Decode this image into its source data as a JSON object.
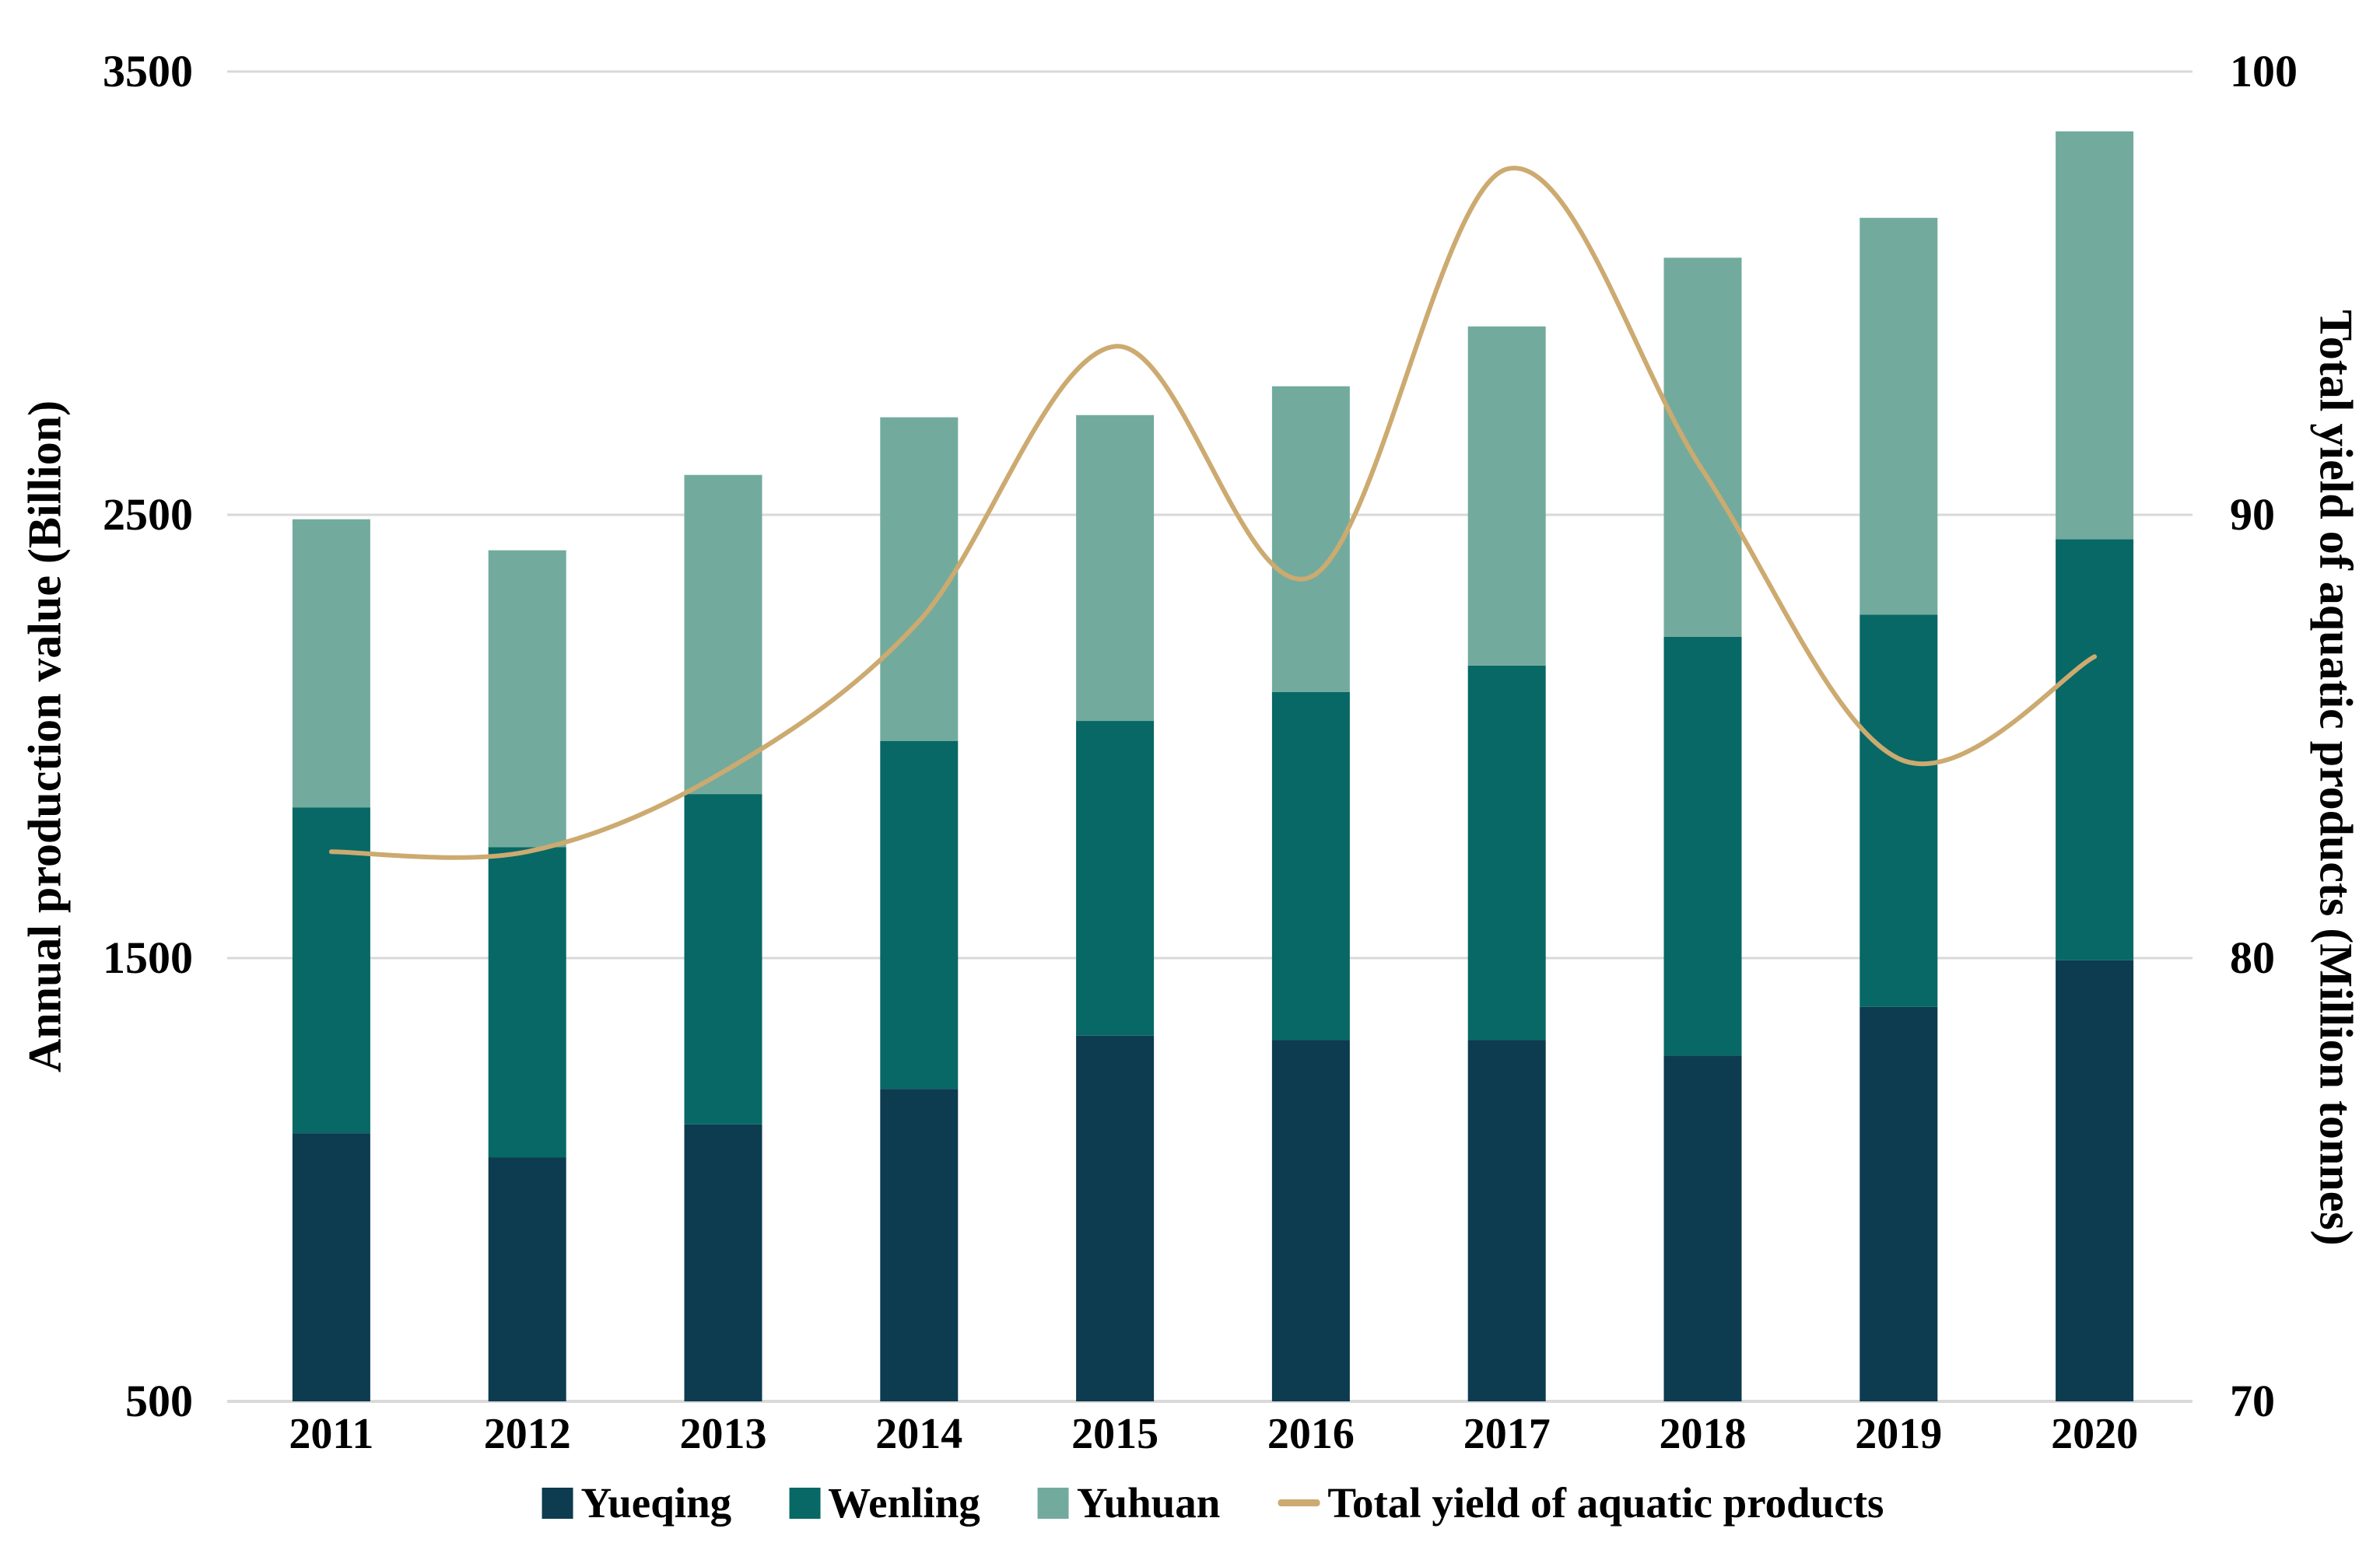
{
  "chart_data": {
    "type": "bar",
    "subtype": "stacked-bars-with-smoothed-line-dual-axis",
    "categories": [
      "2011",
      "2012",
      "2013",
      "2014",
      "2015",
      "2016",
      "2017",
      "2018",
      "2019",
      "2020"
    ],
    "series": [
      {
        "name": "Yueqing",
        "type": "bar",
        "axis": "left",
        "color": "#0d3b50",
        "values": [
          1105,
          1050,
          1125,
          1205,
          1325,
          1315,
          1315,
          1280,
          1390,
          1495
        ]
      },
      {
        "name": "Wenling",
        "type": "bar",
        "axis": "left",
        "color": "#076866",
        "values": [
          735,
          700,
          745,
          785,
          710,
          785,
          845,
          945,
          885,
          950
        ]
      },
      {
        "name": "Yuhuan",
        "type": "bar",
        "axis": "left",
        "color": "#72ab9e",
        "values": [
          650,
          670,
          720,
          730,
          690,
          690,
          765,
          855,
          895,
          920
        ]
      },
      {
        "name": "Total yield of aquatic products",
        "type": "line",
        "axis": "right",
        "color": "#ccaa70",
        "values": [
          82.4,
          82.4,
          84.2,
          87.6,
          93.8,
          88.6,
          97.8,
          91.0,
          84.5,
          86.8
        ]
      }
    ],
    "stacked_totals": [
      2490,
      2420,
      2590,
      2720,
      2725,
      2790,
      2925,
      3080,
      3170,
      3365
    ],
    "left_axis": {
      "title": "Annual production value (Billion)",
      "min": 500,
      "max": 3500,
      "ticks": [
        "3500",
        "2500",
        "1500",
        "500"
      ]
    },
    "right_axis": {
      "title": "Total yield of aquatic products (Million tonnes)",
      "min": 70,
      "max": 100,
      "ticks": [
        "100",
        "90",
        "80",
        "70"
      ]
    },
    "legend": {
      "position": "bottom",
      "items": [
        "Yueqing",
        "Wenling",
        "Yuhuan",
        "Total yield of aquatic products"
      ]
    },
    "grid": {
      "visible": true,
      "color": "#d9d9d9"
    },
    "background_color": "#ffffff",
    "text_color": "#000000",
    "bars_start_at_axis_min": true
  }
}
